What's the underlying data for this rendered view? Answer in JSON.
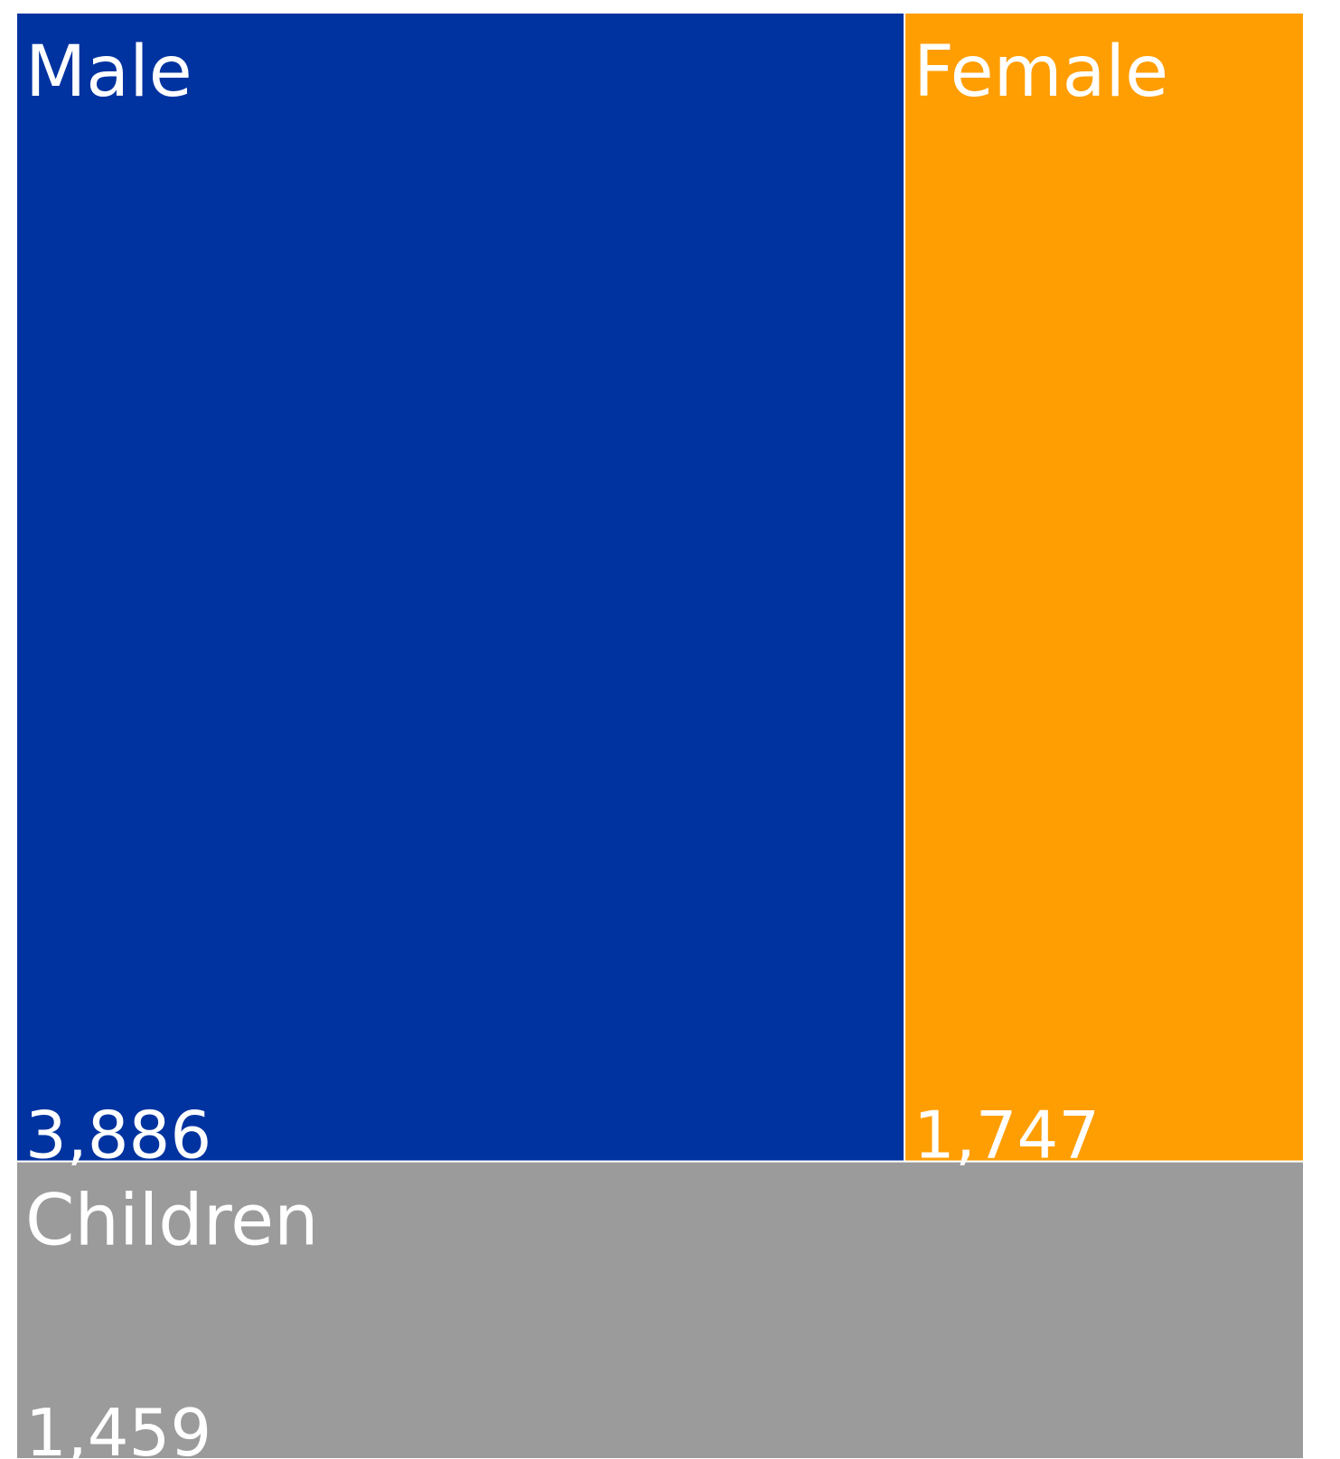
{
  "chart_data": {
    "type": "treemap",
    "title": "",
    "categories": [
      "Male",
      "Female",
      "Children"
    ],
    "values": [
      3886,
      1747,
      1459
    ],
    "value_labels": [
      "3,886",
      "1,747",
      "1,459"
    ],
    "colors": [
      "#0033A0",
      "#FF9E02",
      "#9B9B9B"
    ],
    "border_color": "#ffffff"
  }
}
